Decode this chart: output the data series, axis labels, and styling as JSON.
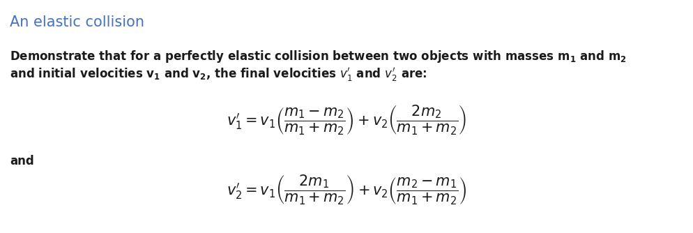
{
  "title": "An elastic collision",
  "title_color": "#4472C4",
  "title_fontsize": 15,
  "body_line1": "Demonstrate that for a perfectly elastic collision between two objects with masses m₁ and m₂",
  "body_line2": "and initial velocities v₁ and v₂, the final velocities $v_1'$ and $v_2'$ are:",
  "eq1": "$v_1' = v_1\\left(\\dfrac{m_1 - m_2}{m_1 + m_2}\\right) + v_2\\left(\\dfrac{2m_2}{m_1 + m_2}\\right)$",
  "and_text": "and",
  "eq2": "$v_2' = v_1\\left(\\dfrac{2m_1}{m_1 + m_2}\\right) + v_2\\left(\\dfrac{m_2 - m_1}{m_1 + m_2}\\right)$",
  "body_fontsize": 12,
  "eq_fontsize": 15,
  "and_fontsize": 12,
  "background_color": "#ffffff",
  "text_color": "#1a1a1a",
  "fig_width": 9.94,
  "fig_height": 3.34,
  "dpi": 100
}
